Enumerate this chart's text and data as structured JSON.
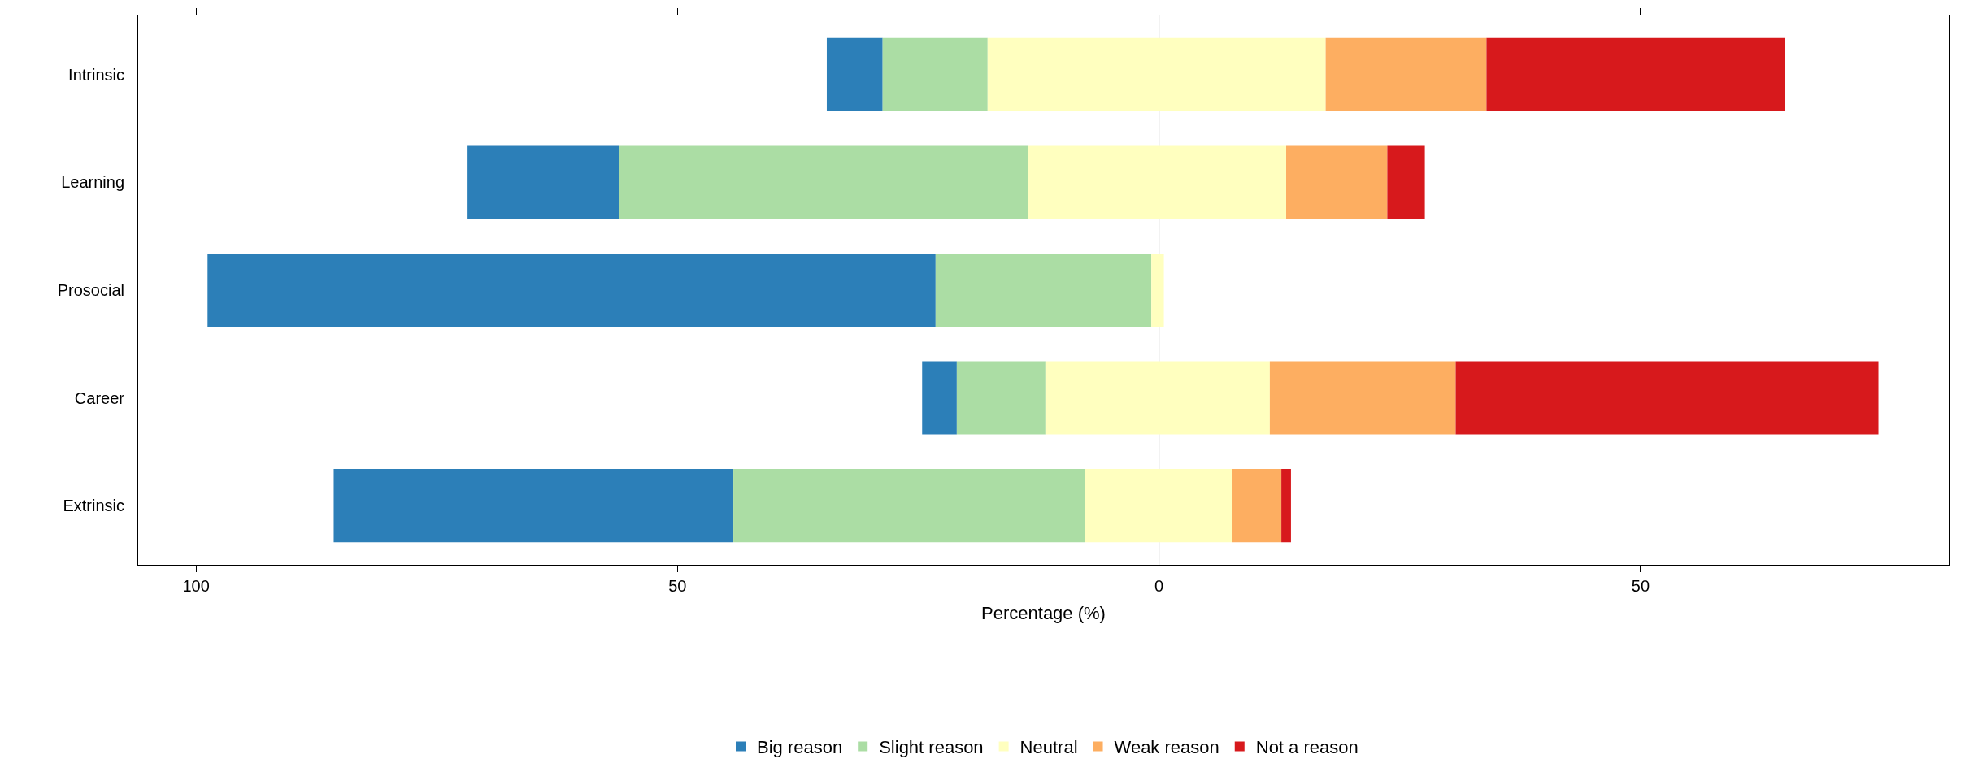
{
  "chart_data": {
    "type": "bar",
    "orientation": "horizontal",
    "xlabel": "Percentage (%)",
    "categories": [
      "Intrinsic",
      "Learning",
      "Prosocial",
      "Career",
      "Extrinsic"
    ],
    "series": [
      {
        "name": "Big reason",
        "color": "#2c7fb8",
        "base": [
          -34.5,
          -71.8,
          -98.8,
          -24.6,
          -85.7
        ],
        "values": [
          5.8,
          15.7,
          75.6,
          3.6,
          41.5
        ]
      },
      {
        "name": "Slight reason",
        "color": "#abdda4",
        "base": [
          -28.7,
          -56.1,
          -23.2,
          -21.0,
          -44.2
        ],
        "values": [
          10.9,
          42.5,
          22.4,
          9.2,
          36.5
        ]
      },
      {
        "name": "Neutral",
        "color": "#ffffbf",
        "base": [
          -17.8,
          -13.6,
          -0.8,
          -11.8,
          -7.7
        ],
        "values": [
          35.1,
          26.8,
          1.3,
          23.3,
          15.3
        ]
      },
      {
        "name": "Weak reason",
        "color": "#fdae61",
        "base": [
          17.3,
          13.2,
          null,
          11.5,
          7.6
        ],
        "values": [
          16.7,
          10.5,
          null,
          19.3,
          5.1
        ]
      },
      {
        "name": "Not a reason",
        "color": "#d7191c",
        "base": [
          34.0,
          23.7,
          null,
          30.8,
          12.7
        ],
        "values": [
          31.0,
          3.9,
          null,
          43.9,
          1.0
        ]
      }
    ],
    "xlim": [
      -106,
      82
    ],
    "xticks": [
      {
        "value": -100,
        "label": "100"
      },
      {
        "value": -50,
        "label": "50"
      },
      0,
      50
    ],
    "ref_lines": [
      {
        "axis": "x",
        "value": 0,
        "color": "#a0a0a0"
      }
    ],
    "grid": false,
    "legend": "bottom"
  }
}
